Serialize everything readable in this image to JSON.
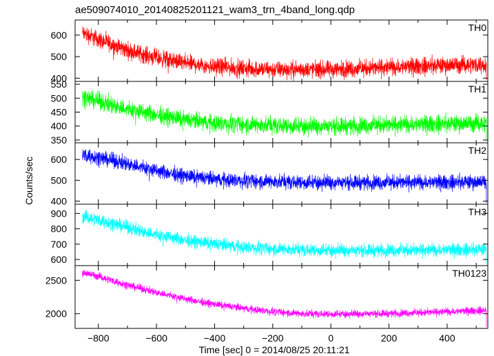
{
  "title": "ae509074010_20140825201121_wam3_trn_4band_long.qdp",
  "xlabel": "Time [sec] 0 = 2014/08/25 20:11:21",
  "ylabel": "Counts/sec",
  "chart_data": {
    "type": "line",
    "title": "ae509074010_20140825201121_wam3_trn_4band_long.qdp",
    "xlabel": "Time [sec] 0 = 2014/08/25 20:11:21",
    "ylabel": "Counts/sec",
    "xlim": [
      -880,
      540
    ],
    "xticks": [
      -800,
      -600,
      -400,
      -200,
      0,
      200,
      400
    ],
    "grid": false,
    "legend": "none (series labels at panel top-right)",
    "x_range_data": [
      -855,
      535
    ],
    "panels": [
      {
        "name": "TH0",
        "color": "#ff0000",
        "ylim": [
          385,
          670
        ],
        "yticks": [
          400,
          500,
          600
        ],
        "noise": 28,
        "trend": [
          [
            -855,
            610
          ],
          [
            -800,
            580
          ],
          [
            -700,
            530
          ],
          [
            -600,
            495
          ],
          [
            -500,
            470
          ],
          [
            -400,
            455
          ],
          [
            -300,
            445
          ],
          [
            -200,
            440
          ],
          [
            -100,
            440
          ],
          [
            0,
            440
          ],
          [
            100,
            445
          ],
          [
            200,
            450
          ],
          [
            300,
            455
          ],
          [
            400,
            460
          ],
          [
            535,
            465
          ]
        ]
      },
      {
        "name": "TH1",
        "color": "#00ff00",
        "ylim": [
          340,
          560
        ],
        "yticks": [
          350,
          400,
          450,
          500,
          550
        ],
        "noise": 22,
        "trend": [
          [
            -855,
            505
          ],
          [
            -800,
            490
          ],
          [
            -700,
            460
          ],
          [
            -600,
            440
          ],
          [
            -500,
            422
          ],
          [
            -400,
            410
          ],
          [
            -300,
            405
          ],
          [
            -200,
            402
          ],
          [
            -100,
            400
          ],
          [
            0,
            400
          ],
          [
            100,
            402
          ],
          [
            200,
            404
          ],
          [
            300,
            406
          ],
          [
            400,
            408
          ],
          [
            535,
            410
          ]
        ]
      },
      {
        "name": "TH2",
        "color": "#0000ff",
        "ylim": [
          385,
          680
        ],
        "yticks": [
          400,
          500,
          600
        ],
        "noise": 25,
        "trend": [
          [
            -855,
            625
          ],
          [
            -800,
            610
          ],
          [
            -700,
            580
          ],
          [
            -600,
            545
          ],
          [
            -500,
            520
          ],
          [
            -400,
            505
          ],
          [
            -300,
            497
          ],
          [
            -200,
            493
          ],
          [
            -100,
            490
          ],
          [
            0,
            490
          ],
          [
            100,
            490
          ],
          [
            200,
            490
          ],
          [
            300,
            490
          ],
          [
            400,
            490
          ],
          [
            535,
            492
          ]
        ]
      },
      {
        "name": "TH3",
        "color": "#00ffff",
        "ylim": [
          560,
          960
        ],
        "yticks": [
          600,
          700,
          800,
          900
        ],
        "noise": 30,
        "trend": [
          [
            -855,
            880
          ],
          [
            -800,
            860
          ],
          [
            -700,
            810
          ],
          [
            -600,
            760
          ],
          [
            -500,
            725
          ],
          [
            -400,
            700
          ],
          [
            -300,
            680
          ],
          [
            -200,
            668
          ],
          [
            -100,
            662
          ],
          [
            0,
            660
          ],
          [
            100,
            660
          ],
          [
            200,
            660
          ],
          [
            300,
            660
          ],
          [
            400,
            662
          ],
          [
            535,
            665
          ]
        ]
      },
      {
        "name": "TH0123",
        "color": "#ff00ff",
        "ylim": [
          1780,
          2720
        ],
        "yticks": [
          2000,
          2500
        ],
        "noise": 40,
        "trend": [
          [
            -855,
            2620
          ],
          [
            -800,
            2560
          ],
          [
            -700,
            2430
          ],
          [
            -600,
            2320
          ],
          [
            -500,
            2220
          ],
          [
            -400,
            2140
          ],
          [
            -300,
            2080
          ],
          [
            -200,
            2030
          ],
          [
            -100,
            2000
          ],
          [
            0,
            1995
          ],
          [
            100,
            2000
          ],
          [
            200,
            2005
          ],
          [
            300,
            2015
          ],
          [
            400,
            2030
          ],
          [
            535,
            2050
          ]
        ]
      }
    ]
  }
}
